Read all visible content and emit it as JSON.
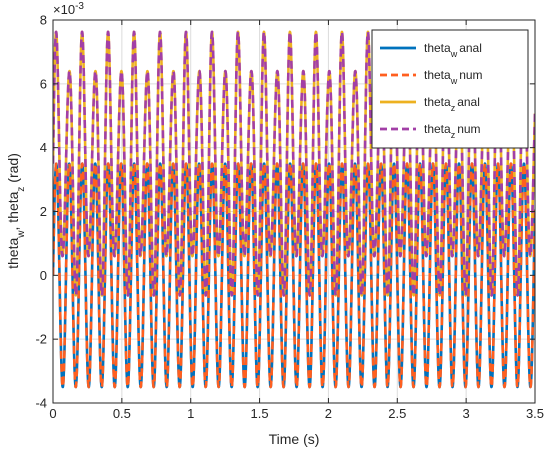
{
  "chart_data": {
    "type": "line",
    "xlabel": "Time (s)",
    "ylabel": {
      "parts": [
        {
          "text": "theta"
        },
        {
          "text": "w",
          "sub": true
        },
        {
          "text": ", theta"
        },
        {
          "text": "z",
          "sub": true
        },
        {
          "text": " (rad)"
        }
      ]
    },
    "exponent_label": {
      "base": "×10",
      "power": "-3"
    },
    "xlim": [
      0,
      3.5
    ],
    "ylim": [
      -4,
      8
    ],
    "y_scale_factor": 0.001,
    "xticks": [
      0,
      0.5,
      1,
      1.5,
      2,
      2.5,
      3,
      3.5
    ],
    "xtick_labels": [
      "0",
      "0.5",
      "1",
      "1.5",
      "2",
      "2.5",
      "3",
      "3.5"
    ],
    "yticks": [
      -4,
      -2,
      0,
      2,
      4,
      6,
      8
    ],
    "ytick_labels": [
      "-4",
      "-2",
      "0",
      "2",
      "4",
      "6",
      "8"
    ],
    "grid": true,
    "legend_position": "top-right",
    "series": [
      {
        "name": {
          "base": "theta",
          "sub": "w",
          "suffix": "anal"
        },
        "color": "#0072BD",
        "dash": "solid",
        "signal": {
          "amplitude": 3.5,
          "frequency_hz": 10.6,
          "beat_depth": 0,
          "beat_frequency_hz": 0,
          "offset": 0
        }
      },
      {
        "name": {
          "base": "theta",
          "sub": "w",
          "suffix": "num"
        },
        "color": "#FF5F1F",
        "dash": "dashed",
        "signal": {
          "amplitude": 3.5,
          "frequency_hz": 10.6,
          "beat_depth": 0,
          "beat_frequency_hz": 0,
          "offset": 0
        }
      },
      {
        "name": {
          "base": "theta",
          "sub": "z",
          "suffix": "anal"
        },
        "color": "#EDB120",
        "dash": "solid",
        "signal": {
          "amplitude": 3.5,
          "frequency_hz": 10.6,
          "beat_depth": 0.25,
          "beat_frequency_hz": 5.3,
          "offset": 3.5
        }
      },
      {
        "name": {
          "base": "theta",
          "sub": "z",
          "suffix": "num"
        },
        "color": "#A23FA6",
        "dash": "dashed",
        "signal": {
          "amplitude": 3.5,
          "frequency_hz": 10.6,
          "beat_depth": 0.25,
          "beat_frequency_hz": 5.3,
          "offset": 3.5
        }
      }
    ]
  }
}
